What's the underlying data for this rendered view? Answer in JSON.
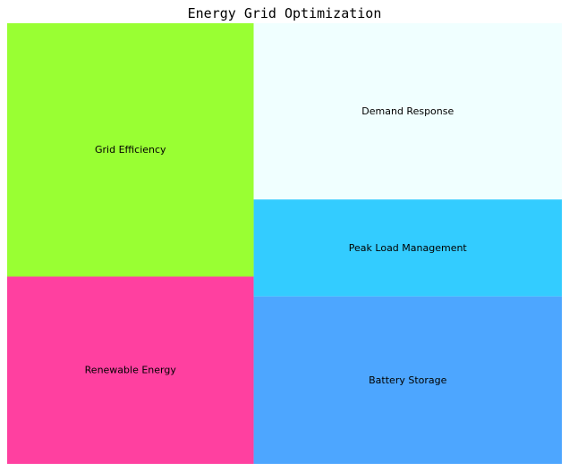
{
  "chart_data": {
    "type": "treemap",
    "title": "Energy Grid Optimization",
    "items": [
      {
        "label": "Grid Efficiency",
        "value": 23,
        "color": "#99ff33"
      },
      {
        "label": "Renewable Energy",
        "value": 17,
        "color": "#ff40a0"
      },
      {
        "label": "Demand Response",
        "value": 20,
        "color": "#f0ffff"
      },
      {
        "label": "Peak Load Management",
        "value": 11,
        "color": "#33ccff"
      },
      {
        "label": "Battery Storage",
        "value": 19,
        "color": "#4da6ff"
      }
    ]
  }
}
